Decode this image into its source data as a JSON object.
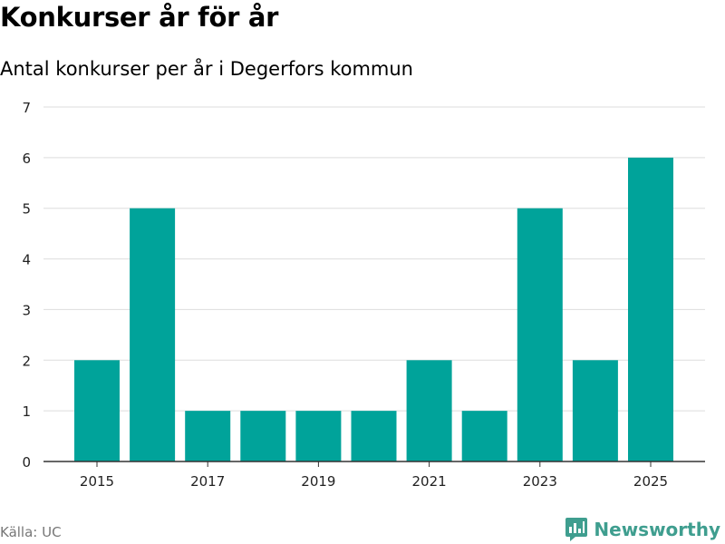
{
  "header": {
    "title": "Konkurser år för år",
    "subtitle": "Antal konkurser per år i Degerfors kommun"
  },
  "footer": {
    "source": "Källa: UC",
    "brand": "Newsworthy",
    "brand_icon": "newsworthy-logo-icon",
    "brand_color": "#3f9e8f"
  },
  "chart_data": {
    "type": "bar",
    "categories": [
      "2015",
      "2016",
      "2017",
      "2018",
      "2019",
      "2020",
      "2021",
      "2022",
      "2023",
      "2024",
      "2025"
    ],
    "values": [
      2,
      5,
      1,
      1,
      1,
      1,
      2,
      1,
      5,
      2,
      6
    ],
    "x_tick_labels": [
      "2015",
      "2017",
      "2019",
      "2021",
      "2023",
      "2025"
    ],
    "y_ticks": [
      0,
      1,
      2,
      3,
      4,
      5,
      6,
      7
    ],
    "ylim": [
      0,
      7
    ],
    "grid": true,
    "legend": "none",
    "bar_color": "#00a39a",
    "grid_color": "#dddddd",
    "axis_color": "#333333"
  }
}
